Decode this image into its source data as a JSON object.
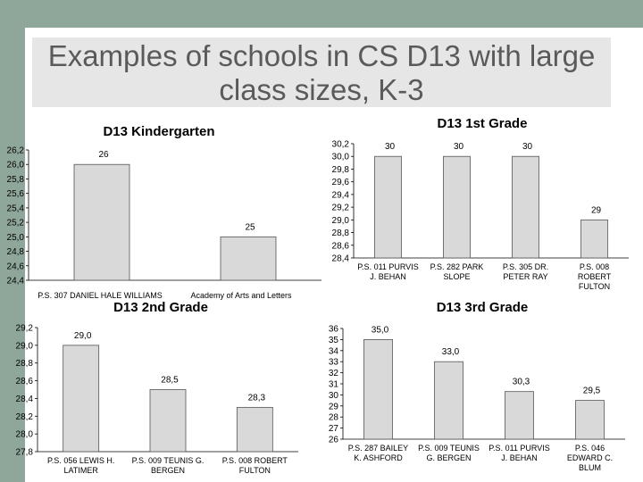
{
  "slide": {
    "title_line1": "Examples of schools in CS D13 with large",
    "title_line2": "class sizes, K-3"
  },
  "chart_data": [
    {
      "id": "k",
      "type": "bar",
      "title": "D13 Kindergarten",
      "categories": [
        [
          "P.S. 307 DANIEL HALE WILLIAMS"
        ],
        [
          "Academy of Arts and Letters"
        ]
      ],
      "values": [
        26,
        25
      ],
      "value_labels": [
        "26",
        "25"
      ],
      "ylim": [
        24.4,
        26.2
      ],
      "yticks": [
        26.2,
        26.0,
        25.8,
        25.6,
        25.4,
        25.2,
        25.0,
        24.8,
        24.6,
        24.4
      ],
      "ytick_labels": [
        "26,2",
        "26,0",
        "25,8",
        "25,6",
        "25,4",
        "25,2",
        "25,0",
        "24,8",
        "24,6",
        "24,4"
      ],
      "grid": false
    },
    {
      "id": "g1",
      "type": "bar",
      "title": "D13 1st Grade",
      "categories": [
        [
          "P.S. 011 PURVIS",
          "J. BEHAN"
        ],
        [
          "P.S. 282 PARK",
          "SLOPE"
        ],
        [
          "P.S. 305 DR.",
          "PETER RAY"
        ],
        [
          "P.S. 008",
          "ROBERT",
          "FULTON"
        ]
      ],
      "values": [
        30,
        30,
        30,
        29
      ],
      "value_labels": [
        "30",
        "30",
        "30",
        "29"
      ],
      "ylim": [
        28.4,
        30.2
      ],
      "yticks": [
        30.2,
        30.0,
        29.8,
        29.6,
        29.4,
        29.2,
        29.0,
        28.8,
        28.6,
        28.4
      ],
      "ytick_labels": [
        "30,2",
        "30,0",
        "29,8",
        "29,6",
        "29,4",
        "29,2",
        "29,0",
        "28,8",
        "28,6",
        "28,4"
      ],
      "grid": false
    },
    {
      "id": "g2",
      "type": "bar",
      "title": "D13 2nd Grade",
      "categories": [
        [
          "P.S. 056 LEWIS H.",
          "LATIMER"
        ],
        [
          "P.S. 009 TEUNIS G.",
          "BERGEN"
        ],
        [
          "P.S. 008 ROBERT",
          "FULTON"
        ]
      ],
      "values": [
        29.0,
        28.5,
        28.3
      ],
      "value_labels": [
        "29,0",
        "28,5",
        "28,3"
      ],
      "ylim": [
        27.8,
        29.2
      ],
      "yticks": [
        29.2,
        29.0,
        28.8,
        28.6,
        28.4,
        28.2,
        28.0,
        27.8
      ],
      "ytick_labels": [
        "29,2",
        "29,0",
        "28,8",
        "28,6",
        "28,4",
        "28,2",
        "28,0",
        "27,8"
      ],
      "grid": false
    },
    {
      "id": "g3",
      "type": "bar",
      "title": "D13 3rd Grade",
      "categories": [
        [
          "P.S. 287 BAILEY",
          "K. ASHFORD"
        ],
        [
          "P.S. 009 TEUNIS",
          "G. BERGEN"
        ],
        [
          "P.S. 011 PURVIS",
          "J. BEHAN"
        ],
        [
          "P.S. 046",
          "EDWARD C.",
          "BLUM"
        ]
      ],
      "values": [
        35.0,
        33.0,
        30.3,
        29.5
      ],
      "value_labels": [
        "35,0",
        "33,0",
        "30,3",
        "29,5"
      ],
      "ylim": [
        26,
        36
      ],
      "yticks": [
        36,
        35,
        34,
        33,
        32,
        31,
        30,
        29,
        28,
        27,
        26
      ],
      "ytick_labels": [
        "36",
        "35",
        "34",
        "33",
        "32",
        "31",
        "30",
        "29",
        "28",
        "27",
        "26"
      ],
      "grid": false
    }
  ]
}
